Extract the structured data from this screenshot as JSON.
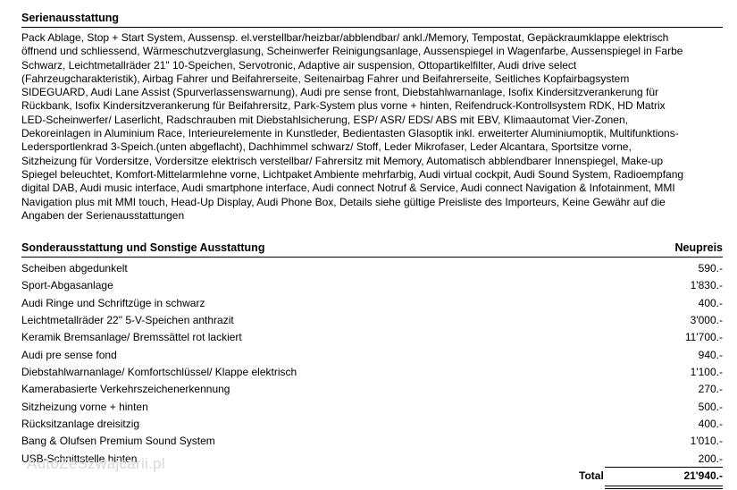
{
  "standard": {
    "title": "Serienausstattung",
    "lines": [
      "Pack Ablage, Stop + Start System, Aussensp. el.verstellbar/heizbar/abblendbar/ ankl./Memory, Tempostat, Gepäckraumklappe elektrisch",
      "öffnend und schliessend, Wärmeschutzverglasung, Scheinwerfer Reinigungsanlage, Aussenspiegel in Wagenfarbe, Aussenspiegel in Farbe",
      "Schwarz, Leichtmetallräder 21\" 10-Speichen, Servotronic, Adaptive air suspension, Ottopartikelfilter, Audi drive select",
      "(Fahrzeugcharakteristik), Airbag Fahrer und Beifahrerseite, Seitenairbag Fahrer und Beifahrerseite, Seitliches Kopfairbagsystem",
      "SIDEGUARD, Audi Lane Assist (Spurverlassenswarnung), Audi pre sense front, Diebstahlwarnanlage, Isofix Kindersitzverankerung für",
      "Rückbank, Isofix Kindersitzverankerung für Beifahrersitz, Park-System plus vorne + hinten, Reifendruck-Kontrollsystem RDK, HD Matrix",
      "LED-Scheinwerfer/ Laserlicht, Radschrauben mit Diebstahlsicherung, ESP/ ASR/ EDS/ ABS mit EBV, Klimaautomat Vier-Zonen,",
      "Dekoreinlagen in Aluminium Race, Interieurelemente in Kunstleder, Bedientasten Glasoptik inkl. erweiterter Aluminiumoptik, Multifunktions-",
      "Ledersportlenkrad 3-Speich.(unten abgeflacht), Dachhimmel schwarz/ Stoff, Leder Mikrofaser, Leder Alcantara, Sportsitze vorne,",
      "Sitzheizung für Vordersitze, Vordersitze elektrisch verstellbar/ Fahrersitz mit Memory, Automatisch abblendbarer Innenspiegel, Make-up",
      "Spiegel beleuchtet, Komfort-Mittelarmlehne vorne, Lichtpaket Ambiente mehrfarbig, Audi virtual cockpit, Audi Sound System, Radioempfang",
      "digital DAB, Audi music interface, Audi smartphone interface, Audi connect Notruf & Service, Audi connect Navigation & Infotainment, MMI",
      "Navigation plus mit MMI touch, Head-Up Display, Audi Phone Box, Details siehe gültige Preisliste des Importeurs, Keine Gewähr auf die",
      "Angaben der Serienausstattungen"
    ]
  },
  "options": {
    "title": "Sonderausstattung und Sonstige Ausstattung",
    "price_header": "Neupreis",
    "rows": [
      [
        "Scheiben abgedunkelt",
        "590.-"
      ],
      [
        "Sport-Abgasanlage",
        "1'830.-"
      ],
      [
        "Audi Ringe und Schriftzüge in schwarz",
        "400.-"
      ],
      [
        "Leichtmetallräder 22\" 5-V-Speichen anthrazit",
        "3'000.-"
      ],
      [
        "Keramik Bremsanlage/ Bremssättel rot lackiert",
        "11'700.-"
      ],
      [
        "Audi pre sense fond",
        "940.-"
      ],
      [
        "Diebstahlwarnanlage/ Komfortschlüssel/ Klappe elektrisch",
        "1'100.-"
      ],
      [
        "Kamerabasierte Verkehrszeichenerkennung",
        "270.-"
      ],
      [
        "Sitzheizung vorne + hinten",
        "500.-"
      ],
      [
        "Rücksitzanlage dreisitzig",
        "400.-"
      ],
      [
        "Bang & Olufsen Premium Sound System",
        "1'010.-"
      ],
      [
        "USB-Schnittstelle hinten",
        "200.-"
      ]
    ],
    "total_label": "Total",
    "total": "21'940.-"
  },
  "watermark": "AutoZeSzwajcarii.pl"
}
